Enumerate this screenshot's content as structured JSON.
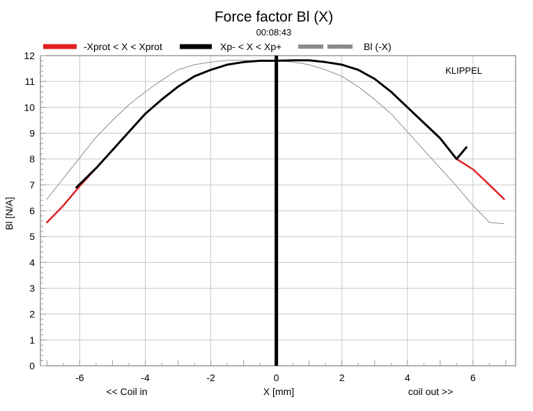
{
  "chart_data": {
    "type": "line",
    "title": "Force factor Bl (X)",
    "subtitle": "00:08:43",
    "watermark": "KLIPPEL",
    "xlabel": "X [mm]",
    "ylabel": "Bl [N/A]",
    "x_left_note": "<< Coil in",
    "x_right_note": "coil out >>",
    "xlim": [
      -7.2,
      7.3
    ],
    "ylim": [
      0,
      12
    ],
    "x_ticks": [
      -6,
      -4,
      -2,
      0,
      2,
      4,
      6
    ],
    "y_ticks": [
      0,
      1,
      2,
      3,
      4,
      5,
      6,
      7,
      8,
      9,
      10,
      11,
      12
    ],
    "grid": true,
    "legend_position": "top",
    "vertical_marker_x": 0,
    "legend": [
      {
        "label": "-Xprot < X < Xprot",
        "color": "#e02020"
      },
      {
        "label": "Xp- < X < Xp+",
        "color": "#000000"
      },
      {
        "label": "Bl (-X)",
        "color": "#8a8a8a"
      }
    ],
    "series": [
      {
        "name": "-Xprot < X < Xprot",
        "color": "#e02020",
        "x": [
          -7.0,
          -6.5,
          -6.0,
          -5.5,
          -5.0,
          -4.5,
          -4.0,
          -3.5,
          -3.0,
          -2.5,
          -2.0,
          -1.5,
          -1.0,
          -0.5,
          0.0,
          0.5,
          1.0,
          1.5,
          2.0,
          2.5,
          3.0,
          3.5,
          4.0,
          4.5,
          5.0,
          5.5,
          6.0,
          6.5,
          6.95
        ],
        "y": [
          5.55,
          6.2,
          6.95,
          7.65,
          8.35,
          9.05,
          9.75,
          10.3,
          10.8,
          11.2,
          11.45,
          11.65,
          11.75,
          11.8,
          11.8,
          11.82,
          11.82,
          11.75,
          11.65,
          11.45,
          11.1,
          10.6,
          10.0,
          9.4,
          8.8,
          8.0,
          7.6,
          7.0,
          6.45
        ]
      },
      {
        "name": "Xp- < X < Xp+",
        "color": "#000000",
        "x": [
          -6.1,
          -5.5,
          -5.0,
          -4.5,
          -4.0,
          -3.5,
          -3.0,
          -2.5,
          -2.0,
          -1.5,
          -1.0,
          -0.5,
          0.0,
          0.5,
          1.0,
          1.5,
          2.0,
          2.5,
          3.0,
          3.5,
          4.0,
          4.5,
          5.0,
          5.5,
          5.8
        ],
        "y": [
          6.9,
          7.65,
          8.35,
          9.05,
          9.75,
          10.3,
          10.8,
          11.2,
          11.45,
          11.65,
          11.75,
          11.8,
          11.8,
          11.82,
          11.82,
          11.75,
          11.65,
          11.45,
          11.1,
          10.6,
          10.0,
          9.4,
          8.8,
          8.0,
          8.45
        ]
      },
      {
        "name": "Bl (-X)",
        "color": "#8a8a8a",
        "x": [
          -7.0,
          -6.5,
          -6.0,
          -5.5,
          -5.0,
          -4.5,
          -4.0,
          -3.5,
          -3.0,
          -2.5,
          -2.0,
          -1.5,
          -1.0,
          -0.5,
          0.0,
          0.5,
          1.0,
          1.5,
          2.0,
          2.5,
          3.0,
          3.5,
          4.0,
          4.5,
          5.0,
          5.5,
          6.0,
          6.5,
          6.95
        ],
        "y": [
          6.45,
          7.25,
          8.05,
          8.85,
          9.5,
          10.1,
          10.6,
          11.05,
          11.45,
          11.65,
          11.75,
          11.82,
          11.82,
          11.8,
          11.8,
          11.75,
          11.65,
          11.45,
          11.2,
          10.8,
          10.3,
          9.75,
          9.05,
          8.35,
          7.65,
          6.95,
          6.2,
          5.55,
          5.5
        ]
      }
    ]
  }
}
